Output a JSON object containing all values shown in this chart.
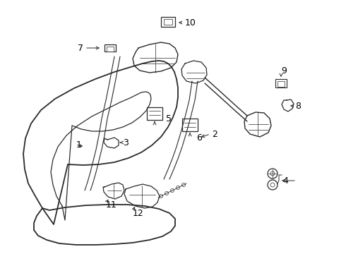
{
  "bg_color": "#ffffff",
  "line_color": "#2a2a2a",
  "text_color": "#000000",
  "figsize": [
    4.9,
    3.6
  ],
  "dpi": 100,
  "xlim": [
    0,
    490
  ],
  "ylim": [
    0,
    360
  ]
}
